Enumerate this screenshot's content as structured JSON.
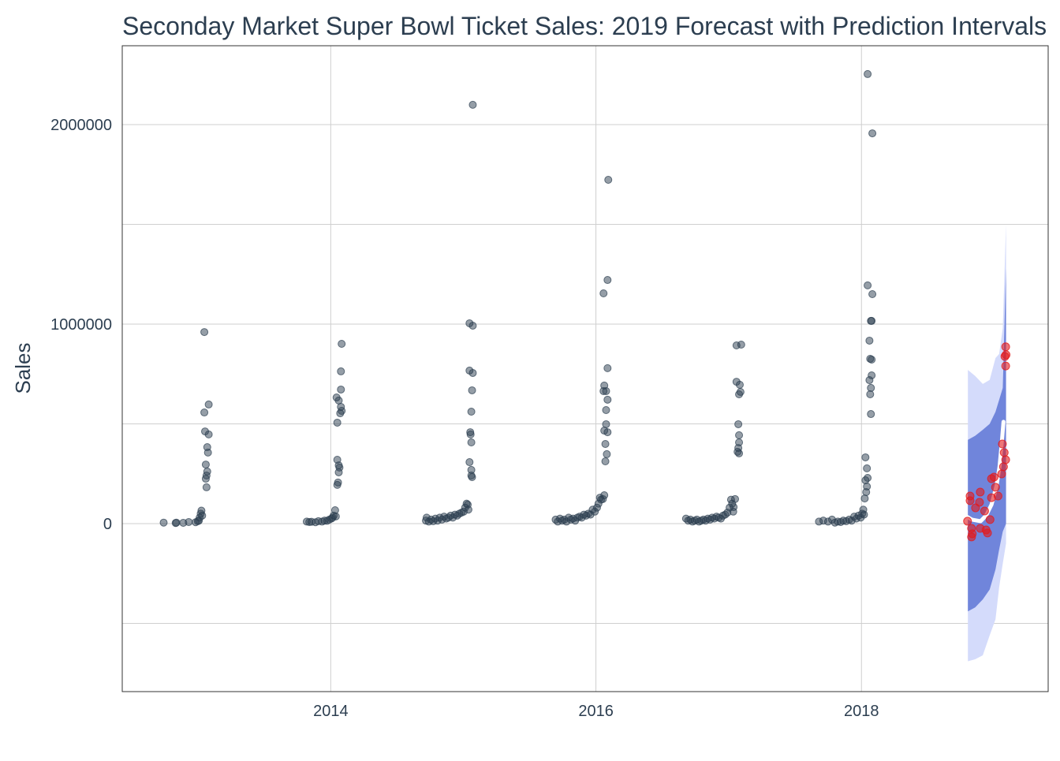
{
  "chart_data": {
    "type": "scatter",
    "title": "Seconday Market Super Bowl Ticket Sales: 2019 Forecast with Prediction Intervals",
    "xlabel": "",
    "ylabel": "Sales",
    "xlim": [
      "2012-06-06",
      "2019-05-30"
    ],
    "ylim": [
      -842000,
      2395000
    ],
    "x_ticks": [
      "2014",
      "2016",
      "2018"
    ],
    "y_ticks": [
      "0",
      "1000000",
      "2000000"
    ],
    "y_gridlines": [
      -500000,
      0,
      500000,
      1000000,
      1500000,
      2000000
    ],
    "grid": true,
    "legend": "none",
    "colors": {
      "actual": "#2C3E50",
      "predicted": "#E31A1C",
      "forecast_line": "#FFFFFF",
      "band_80": "#7085DB",
      "band_95": "#D4DBFB",
      "title": "#2C3E50"
    },
    "actual": [
      [
        "2012-09-28",
        5000
      ],
      [
        "2012-10-31",
        3000
      ],
      [
        "2012-11-02",
        5000
      ],
      [
        "2012-11-21",
        4000
      ],
      [
        "2012-12-06",
        8000
      ],
      [
        "2012-12-25",
        7000
      ],
      [
        "2012-12-31",
        12000
      ],
      [
        "2013-01-03",
        15000
      ],
      [
        "2013-01-05",
        30000
      ],
      [
        "2013-01-08",
        50000
      ],
      [
        "2013-01-10",
        65000
      ],
      [
        "2013-01-12",
        40000
      ],
      [
        "2013-01-18",
        960000
      ],
      [
        "2013-01-30",
        597000
      ],
      [
        "2013-01-18",
        557000
      ],
      [
        "2013-01-20",
        462000
      ],
      [
        "2013-01-30",
        447000
      ],
      [
        "2013-01-26",
        383000
      ],
      [
        "2013-01-28",
        356000
      ],
      [
        "2013-01-22",
        296000
      ],
      [
        "2013-01-26",
        261000
      ],
      [
        "2013-01-24",
        241000
      ],
      [
        "2013-01-22",
        225000
      ],
      [
        "2013-01-24",
        182000
      ],
      [
        "2013-10-27",
        10000
      ],
      [
        "2013-11-03",
        8000
      ],
      [
        "2013-11-09",
        9000
      ],
      [
        "2013-11-20",
        7000
      ],
      [
        "2013-11-28",
        12000
      ],
      [
        "2013-12-08",
        10000
      ],
      [
        "2013-12-15",
        15000
      ],
      [
        "2013-12-22",
        14000
      ],
      [
        "2013-12-28",
        20000
      ],
      [
        "2014-01-03",
        25000
      ],
      [
        "2014-01-06",
        30000
      ],
      [
        "2014-01-09",
        40000
      ],
      [
        "2014-01-31",
        901000
      ],
      [
        "2014-01-29",
        763000
      ],
      [
        "2014-01-29",
        672000
      ],
      [
        "2014-01-17",
        632000
      ],
      [
        "2014-01-23",
        617000
      ],
      [
        "2014-01-29",
        585000
      ],
      [
        "2014-01-31",
        565000
      ],
      [
        "2014-01-27",
        553000
      ],
      [
        "2014-01-19",
        506000
      ],
      [
        "2014-01-19",
        320000
      ],
      [
        "2014-01-23",
        292000
      ],
      [
        "2014-01-25",
        281000
      ],
      [
        "2014-01-23",
        257000
      ],
      [
        "2014-01-21",
        206000
      ],
      [
        "2014-01-19",
        194000
      ],
      [
        "2014-01-13",
        67000
      ],
      [
        "2014-01-15",
        36000
      ],
      [
        "2014-09-20",
        15000
      ],
      [
        "2014-09-22",
        30000
      ],
      [
        "2014-09-28",
        10000
      ],
      [
        "2014-10-04",
        20000
      ],
      [
        "2014-10-10",
        12000
      ],
      [
        "2014-10-16",
        25000
      ],
      [
        "2014-10-22",
        15000
      ],
      [
        "2014-10-28",
        30000
      ],
      [
        "2014-11-03",
        20000
      ],
      [
        "2014-11-09",
        35000
      ],
      [
        "2014-11-15",
        25000
      ],
      [
        "2014-11-21",
        30000
      ],
      [
        "2014-11-27",
        40000
      ],
      [
        "2014-12-03",
        30000
      ],
      [
        "2014-12-09",
        45000
      ],
      [
        "2014-12-15",
        40000
      ],
      [
        "2014-12-21",
        50000
      ],
      [
        "2014-12-27",
        55000
      ],
      [
        "2015-01-02",
        60000
      ],
      [
        "2015-01-06",
        80000
      ],
      [
        "2015-01-10",
        100000
      ],
      [
        "2015-01-13",
        95000
      ],
      [
        "2015-01-15",
        70000
      ],
      [
        "2015-01-27",
        2099000
      ],
      [
        "2015-01-18",
        1004000
      ],
      [
        "2015-01-27",
        992000
      ],
      [
        "2015-01-18",
        767000
      ],
      [
        "2015-01-27",
        755000
      ],
      [
        "2015-01-25",
        668000
      ],
      [
        "2015-01-23",
        561000
      ],
      [
        "2015-01-20",
        458000
      ],
      [
        "2015-01-21",
        447000
      ],
      [
        "2015-01-23",
        407000
      ],
      [
        "2015-01-18",
        308000
      ],
      [
        "2015-01-23",
        269000
      ],
      [
        "2015-01-23",
        241000
      ],
      [
        "2015-01-25",
        233000
      ],
      [
        "2015-09-12",
        20000
      ],
      [
        "2015-09-18",
        10000
      ],
      [
        "2015-09-24",
        25000
      ],
      [
        "2015-09-30",
        15000
      ],
      [
        "2015-10-06",
        20000
      ],
      [
        "2015-10-12",
        10000
      ],
      [
        "2015-10-18",
        30000
      ],
      [
        "2015-10-24",
        20000
      ],
      [
        "2015-10-30",
        25000
      ],
      [
        "2015-11-05",
        15000
      ],
      [
        "2015-11-11",
        30000
      ],
      [
        "2015-11-17",
        35000
      ],
      [
        "2015-11-23",
        30000
      ],
      [
        "2015-11-29",
        45000
      ],
      [
        "2015-12-05",
        40000
      ],
      [
        "2015-12-11",
        50000
      ],
      [
        "2015-12-17",
        45000
      ],
      [
        "2015-12-23",
        70000
      ],
      [
        "2015-12-29",
        60000
      ],
      [
        "2016-01-04",
        80000
      ],
      [
        "2016-01-08",
        100000
      ],
      [
        "2016-01-12",
        130000
      ],
      [
        "2016-01-15",
        120000
      ],
      [
        "2016-02-04",
        1723000
      ],
      [
        "2016-02-02",
        1221000
      ],
      [
        "2016-01-22",
        1154000
      ],
      [
        "2016-02-02",
        779000
      ],
      [
        "2016-01-24",
        692000
      ],
      [
        "2016-01-29",
        664000
      ],
      [
        "2016-01-22",
        664000
      ],
      [
        "2016-02-02",
        621000
      ],
      [
        "2016-01-29",
        569000
      ],
      [
        "2016-01-29",
        498000
      ],
      [
        "2016-01-24",
        466000
      ],
      [
        "2016-02-02",
        458000
      ],
      [
        "2016-01-27",
        399000
      ],
      [
        "2016-01-31",
        348000
      ],
      [
        "2016-01-27",
        312000
      ],
      [
        "2016-01-24",
        142000
      ],
      [
        "2016-01-20",
        123000
      ],
      [
        "2016-09-05",
        25000
      ],
      [
        "2016-09-11",
        15000
      ],
      [
        "2016-09-17",
        20000
      ],
      [
        "2016-09-23",
        10000
      ],
      [
        "2016-09-29",
        15000
      ],
      [
        "2016-10-05",
        20000
      ],
      [
        "2016-10-11",
        10000
      ],
      [
        "2016-10-17",
        15000
      ],
      [
        "2016-10-23",
        20000
      ],
      [
        "2016-10-29",
        15000
      ],
      [
        "2016-11-04",
        25000
      ],
      [
        "2016-11-10",
        20000
      ],
      [
        "2016-11-16",
        30000
      ],
      [
        "2016-11-22",
        25000
      ],
      [
        "2016-11-28",
        35000
      ],
      [
        "2016-12-04",
        30000
      ],
      [
        "2016-12-10",
        25000
      ],
      [
        "2016-12-16",
        40000
      ],
      [
        "2016-12-22",
        45000
      ],
      [
        "2016-12-28",
        55000
      ],
      [
        "2017-01-03",
        80000
      ],
      [
        "2017-01-07",
        120000
      ],
      [
        "2017-01-10",
        100000
      ],
      [
        "2017-01-13",
        60000
      ],
      [
        "2017-01-22",
        893000
      ],
      [
        "2017-02-04",
        897000
      ],
      [
        "2017-01-22",
        711000
      ],
      [
        "2017-01-31",
        696000
      ],
      [
        "2017-02-02",
        660000
      ],
      [
        "2017-01-29",
        648000
      ],
      [
        "2017-01-27",
        498000
      ],
      [
        "2017-01-29",
        443000
      ],
      [
        "2017-01-29",
        407000
      ],
      [
        "2017-01-27",
        379000
      ],
      [
        "2017-01-25",
        360000
      ],
      [
        "2017-01-29",
        352000
      ],
      [
        "2017-01-18",
        123000
      ],
      [
        "2017-01-14",
        83000
      ],
      [
        "2017-09-06",
        10000
      ],
      [
        "2017-09-18",
        15000
      ],
      [
        "2017-10-01",
        10000
      ],
      [
        "2017-10-12",
        20000
      ],
      [
        "2017-10-20",
        5000
      ],
      [
        "2017-10-28",
        10000
      ],
      [
        "2017-11-05",
        8000
      ],
      [
        "2017-11-12",
        15000
      ],
      [
        "2017-11-20",
        12000
      ],
      [
        "2017-11-28",
        20000
      ],
      [
        "2017-12-05",
        15000
      ],
      [
        "2017-12-12",
        35000
      ],
      [
        "2017-12-18",
        25000
      ],
      [
        "2017-12-24",
        40000
      ],
      [
        "2017-12-30",
        30000
      ],
      [
        "2018-01-03",
        50000
      ],
      [
        "2018-01-06",
        70000
      ],
      [
        "2018-01-08",
        45000
      ],
      [
        "2018-01-18",
        2253000
      ],
      [
        "2018-01-31",
        1956000
      ],
      [
        "2018-01-18",
        1194000
      ],
      [
        "2018-01-31",
        1150000
      ],
      [
        "2018-01-27",
        1016000
      ],
      [
        "2018-01-29",
        1016000
      ],
      [
        "2018-01-23",
        917000
      ],
      [
        "2018-01-25",
        826000
      ],
      [
        "2018-01-29",
        822000
      ],
      [
        "2018-01-29",
        743000
      ],
      [
        "2018-01-23",
        719000
      ],
      [
        "2018-01-27",
        680000
      ],
      [
        "2018-01-25",
        648000
      ],
      [
        "2018-01-27",
        549000
      ],
      [
        "2018-01-12",
        332000
      ],
      [
        "2018-01-16",
        277000
      ],
      [
        "2018-01-18",
        229000
      ],
      [
        "2018-01-12",
        217000
      ],
      [
        "2018-01-16",
        186000
      ],
      [
        "2018-01-14",
        158000
      ],
      [
        "2018-01-10",
        126000
      ]
    ],
    "predicted": [
      [
        "2019-02-02",
        886000
      ],
      [
        "2019-02-03",
        846000
      ],
      [
        "2019-01-31",
        838000
      ],
      [
        "2019-02-02",
        790000
      ],
      [
        "2019-01-24",
        399000
      ],
      [
        "2019-01-29",
        356000
      ],
      [
        "2019-02-02",
        320000
      ],
      [
        "2019-01-27",
        285000
      ],
      [
        "2019-01-22",
        249000
      ],
      [
        "2019-01-01",
        233000
      ],
      [
        "2018-12-25",
        225000
      ],
      [
        "2019-01-05",
        182000
      ],
      [
        "2018-11-24",
        158000
      ],
      [
        "2018-10-27",
        138000
      ],
      [
        "2018-10-27",
        115000
      ],
      [
        "2019-01-12",
        138000
      ],
      [
        "2018-12-25",
        130000
      ],
      [
        "2018-11-22",
        107000
      ],
      [
        "2018-11-11",
        79000
      ],
      [
        "2018-12-06",
        63000
      ],
      [
        "2018-12-21",
        20000
      ],
      [
        "2018-10-20",
        12000
      ],
      [
        "2018-10-31",
        -24000
      ],
      [
        "2018-12-10",
        -32000
      ],
      [
        "2018-11-02",
        -51000
      ],
      [
        "2018-10-31",
        -67000
      ],
      [
        "2018-11-24",
        -24000
      ],
      [
        "2018-12-14",
        -47000
      ]
    ],
    "forecast": {
      "dates": [
        "2018-10-17",
        "2018-11-01",
        "2018-11-25",
        "2018-12-10",
        "2018-12-25",
        "2019-01-08",
        "2019-01-16",
        "2019-01-22",
        "2019-01-27"
      ],
      "values": [
        36000,
        20000,
        12000,
        40000,
        95000,
        190000,
        285000,
        400000,
        510000
      ]
    },
    "intervals": {
      "dates": [
        "2018-10-21",
        "2018-11-10",
        "2018-12-01",
        "2018-12-20",
        "2019-01-05",
        "2019-01-15",
        "2019-01-25",
        "2019-02-03"
      ],
      "lo80": [
        -440000,
        -420000,
        -380000,
        -330000,
        -230000,
        -130000,
        -40000,
        0
      ],
      "hi80": [
        420000,
        440000,
        470000,
        500000,
        560000,
        620000,
        680000,
        1280000
      ],
      "lo95": [
        -690000,
        -680000,
        -660000,
        -560000,
        -480000,
        -320000,
        -200000,
        -100000
      ],
      "hi95": [
        770000,
        740000,
        700000,
        720000,
        830000,
        850000,
        980000,
        1500000
      ]
    }
  }
}
